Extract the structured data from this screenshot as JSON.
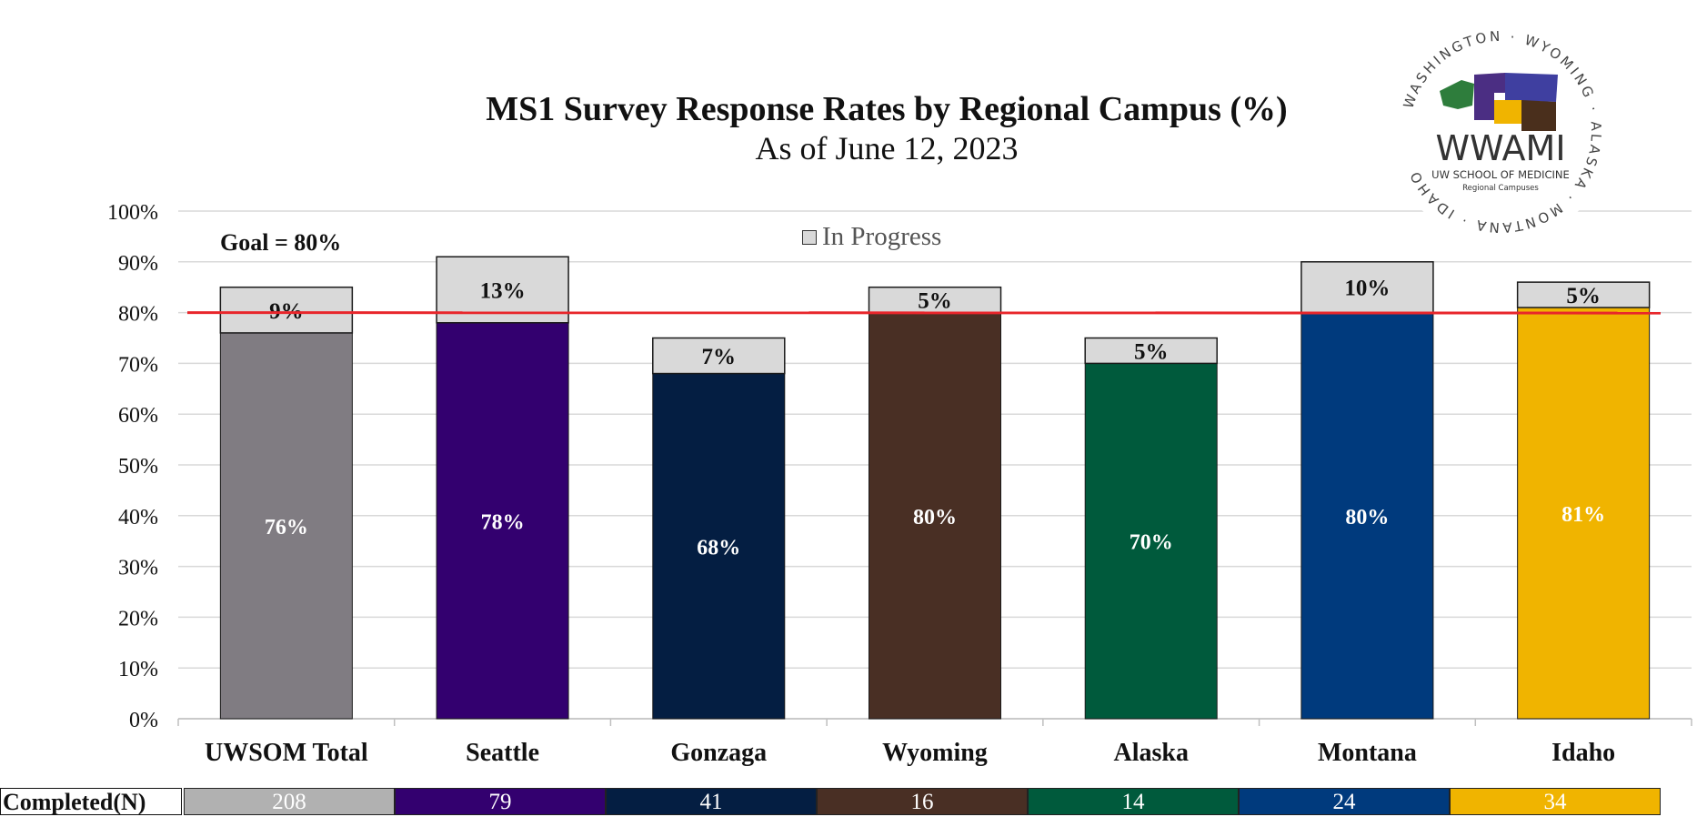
{
  "title": "MS1 Survey Response Rates by Regional Campus (%)",
  "subtitle": "As of June 12, 2023",
  "goal_label": "Goal = 80%",
  "legend": {
    "label": "In Progress",
    "color": "#d9d9d9"
  },
  "logo": {
    "name": "WWAMI",
    "line1": "UW SCHOOL OF MEDICINE",
    "line2": "Regional Campuses",
    "ring_text": "WASHINGTON · WYOMING · ALASKA · MONTANA · IDAHO"
  },
  "chart_data": {
    "type": "bar",
    "stacked": true,
    "categories": [
      "UWSOM Total",
      "Seattle",
      "Gonzaga",
      "Wyoming",
      "Alaska",
      "Montana",
      "Idaho"
    ],
    "series": [
      {
        "values": [
          76,
          78,
          68,
          80,
          70,
          80,
          81
        ],
        "labels": [
          "76%",
          "78%",
          "68%",
          "80%",
          "70%",
          "80%",
          "81%"
        ],
        "colors": [
          "#807c82",
          "#33006f",
          "#041e42",
          "#492f24",
          "#005a3c",
          "#003a7d",
          "#f0b400"
        ]
      },
      {
        "name": "In Progress",
        "values": [
          9,
          13,
          7,
          5,
          5,
          10,
          5
        ],
        "labels": [
          "9%",
          "13%",
          "7%",
          "5%",
          "5%",
          "10%",
          "5%"
        ],
        "color": "#d9d9d9"
      }
    ],
    "goal_line": 80,
    "goal_line_color": "#e8262b",
    "ylim": [
      0,
      100
    ],
    "yticks": [
      "0%",
      "10%",
      "20%",
      "30%",
      "40%",
      "50%",
      "60%",
      "70%",
      "80%",
      "90%",
      "100%"
    ],
    "grid": true
  },
  "table": {
    "label": "Completed(N)",
    "values": [
      "208",
      "79",
      "41",
      "16",
      "14",
      "24",
      "34"
    ],
    "colors": [
      "#b1b1b1",
      "#33006f",
      "#041e42",
      "#492f24",
      "#005a3c",
      "#003a7d",
      "#f0b400"
    ]
  }
}
